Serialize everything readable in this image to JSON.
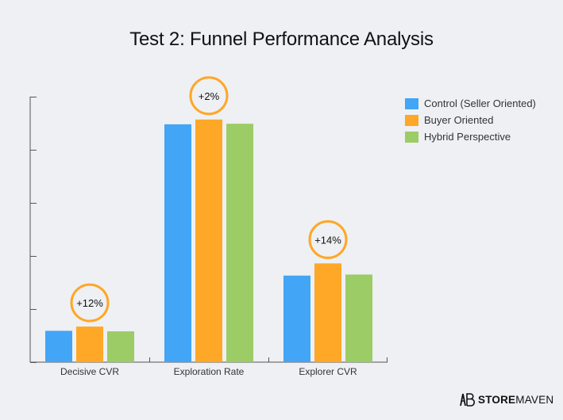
{
  "chart_data": {
    "type": "bar",
    "title": "Test 2: Funnel Performance Analysis",
    "xlabel": "",
    "ylabel": "",
    "categories": [
      "Decisive CVR",
      "Exploration Rate",
      "Explorer CVR"
    ],
    "series": [
      {
        "name": "Control (Seller Oriented)",
        "color": "#42a5f5",
        "values": [
          0.59,
          4.48,
          1.63
        ]
      },
      {
        "name": "Buyer Oriented",
        "color": "#ffa726",
        "values": [
          0.67,
          4.57,
          1.86
        ]
      },
      {
        "name": "Hybrid Perspective",
        "color": "#9ccc65",
        "values": [
          0.58,
          4.49,
          1.65
        ]
      }
    ],
    "ylim": [
      0,
      5
    ],
    "y_tick_labels": "none",
    "grid": false,
    "legend_position": "right",
    "annotations": [
      {
        "category": "Decisive CVR",
        "text": "+12%",
        "color": "#ffa726"
      },
      {
        "category": "Exploration Rate",
        "text": "+2%",
        "color": "#ffa726"
      },
      {
        "category": "Explorer CVR",
        "text": "+14%",
        "color": "#ffa726"
      }
    ]
  },
  "brand": {
    "bold": "STORE",
    "light": "MAVEN"
  }
}
